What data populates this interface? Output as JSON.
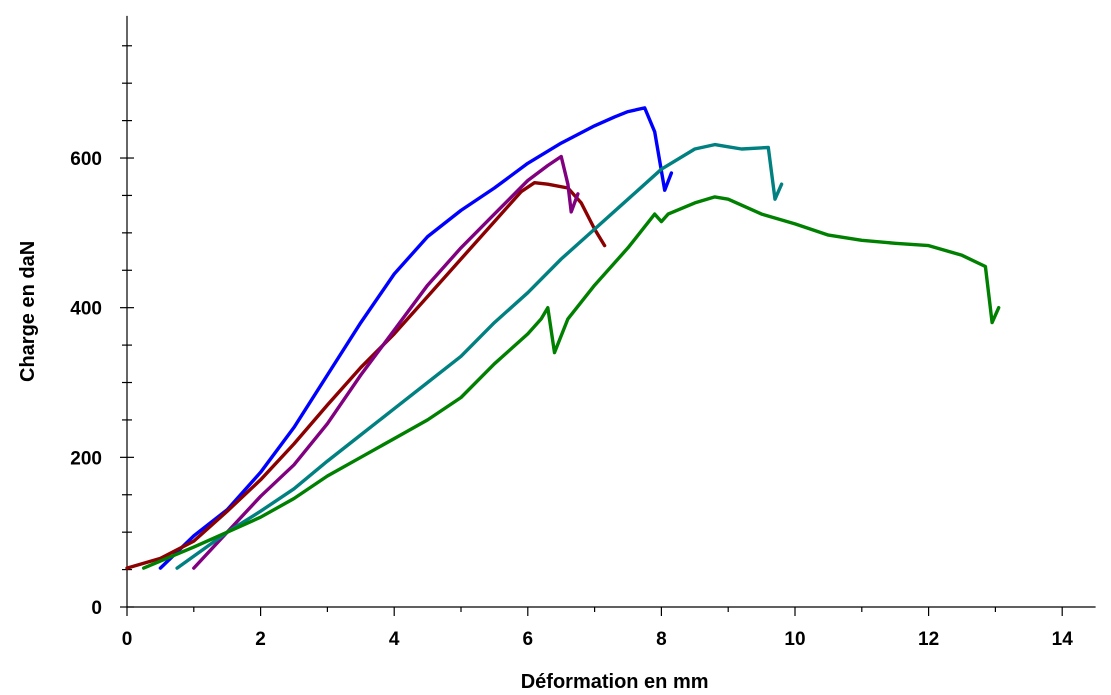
{
  "chart_data": {
    "type": "line",
    "title": "",
    "xlabel": "Déformation en mm",
    "ylabel": "Charge  en daN",
    "xlim": [
      0,
      14.5
    ],
    "ylim": [
      0,
      790
    ],
    "x_ticks": [
      0,
      2,
      4,
      6,
      8,
      10,
      12,
      14
    ],
    "y_ticks": [
      0,
      200,
      400,
      600
    ],
    "x_minor_step": 1,
    "y_minor_step": 50,
    "grid": false,
    "legend": "none",
    "series": [
      {
        "color": "#0000ff",
        "points": [
          [
            0.5,
            52
          ],
          [
            1.0,
            95
          ],
          [
            1.5,
            130
          ],
          [
            2.0,
            180
          ],
          [
            2.5,
            240
          ],
          [
            3.0,
            310
          ],
          [
            3.5,
            380
          ],
          [
            4.0,
            445
          ],
          [
            4.5,
            495
          ],
          [
            5.0,
            530
          ],
          [
            5.5,
            560
          ],
          [
            6.0,
            593
          ],
          [
            6.5,
            620
          ],
          [
            7.0,
            643
          ],
          [
            7.3,
            655
          ],
          [
            7.5,
            662
          ],
          [
            7.75,
            667
          ],
          [
            7.9,
            635
          ],
          [
            8.05,
            557
          ],
          [
            8.15,
            580
          ]
        ]
      },
      {
        "color": "#8b0000",
        "points": [
          [
            0.0,
            52
          ],
          [
            0.5,
            65
          ],
          [
            1.0,
            88
          ],
          [
            1.5,
            128
          ],
          [
            2.0,
            170
          ],
          [
            2.5,
            218
          ],
          [
            3.0,
            270
          ],
          [
            3.5,
            320
          ],
          [
            4.0,
            365
          ],
          [
            4.5,
            415
          ],
          [
            5.0,
            465
          ],
          [
            5.5,
            515
          ],
          [
            5.9,
            555
          ],
          [
            6.1,
            567
          ],
          [
            6.3,
            565
          ],
          [
            6.6,
            560
          ],
          [
            6.8,
            540
          ],
          [
            7.0,
            505
          ],
          [
            7.15,
            483
          ]
        ]
      },
      {
        "color": "#800080",
        "points": [
          [
            1.0,
            52
          ],
          [
            1.5,
            100
          ],
          [
            2.0,
            148
          ],
          [
            2.5,
            190
          ],
          [
            3.0,
            245
          ],
          [
            3.5,
            310
          ],
          [
            4.0,
            370
          ],
          [
            4.5,
            430
          ],
          [
            5.0,
            480
          ],
          [
            5.5,
            525
          ],
          [
            6.0,
            570
          ],
          [
            6.3,
            590
          ],
          [
            6.5,
            602
          ],
          [
            6.6,
            565
          ],
          [
            6.65,
            528
          ],
          [
            6.75,
            552
          ]
        ]
      },
      {
        "color": "#008080",
        "points": [
          [
            0.75,
            52
          ],
          [
            1.5,
            100
          ],
          [
            2.0,
            128
          ],
          [
            2.5,
            158
          ],
          [
            3.0,
            195
          ],
          [
            3.5,
            230
          ],
          [
            4.0,
            265
          ],
          [
            4.5,
            300
          ],
          [
            5.0,
            335
          ],
          [
            5.5,
            380
          ],
          [
            6.0,
            420
          ],
          [
            6.5,
            465
          ],
          [
            7.0,
            505
          ],
          [
            7.5,
            545
          ],
          [
            8.0,
            585
          ],
          [
            8.5,
            612
          ],
          [
            8.8,
            618
          ],
          [
            9.0,
            615
          ],
          [
            9.2,
            612
          ],
          [
            9.6,
            614
          ],
          [
            9.7,
            545
          ],
          [
            9.8,
            565
          ]
        ]
      },
      {
        "color": "#008000",
        "points": [
          [
            0.25,
            52
          ],
          [
            1.0,
            80
          ],
          [
            1.5,
            100
          ],
          [
            2.0,
            120
          ],
          [
            2.5,
            145
          ],
          [
            3.0,
            175
          ],
          [
            3.5,
            200
          ],
          [
            4.0,
            225
          ],
          [
            4.5,
            250
          ],
          [
            5.0,
            280
          ],
          [
            5.5,
            325
          ],
          [
            6.0,
            365
          ],
          [
            6.2,
            385
          ],
          [
            6.3,
            400
          ],
          [
            6.4,
            340
          ],
          [
            6.6,
            385
          ],
          [
            7.0,
            430
          ],
          [
            7.5,
            480
          ],
          [
            7.9,
            525
          ],
          [
            8.0,
            515
          ],
          [
            8.1,
            525
          ],
          [
            8.5,
            540
          ],
          [
            8.8,
            548
          ],
          [
            9.0,
            545
          ],
          [
            9.5,
            525
          ],
          [
            10.0,
            512
          ],
          [
            10.5,
            497
          ],
          [
            11.0,
            490
          ],
          [
            11.5,
            486
          ],
          [
            12.0,
            483
          ],
          [
            12.5,
            470
          ],
          [
            12.85,
            455
          ],
          [
            12.95,
            380
          ],
          [
            13.05,
            400
          ]
        ]
      }
    ]
  }
}
